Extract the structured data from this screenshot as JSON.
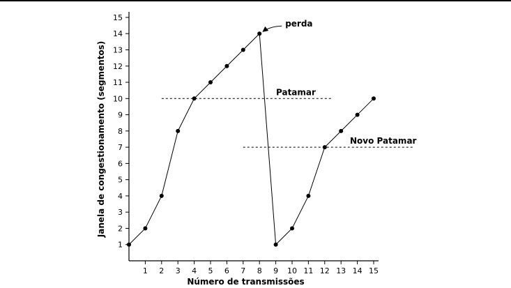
{
  "chart_data": {
    "type": "line",
    "xlabel": "Número de transmissões",
    "ylabel": "Janela de congestionamento (segmentos)",
    "xlim": [
      0,
      15
    ],
    "ylim": [
      0,
      15
    ],
    "x_ticks": [
      1,
      2,
      3,
      4,
      5,
      6,
      7,
      8,
      9,
      10,
      11,
      12,
      13,
      14,
      15
    ],
    "y_ticks": [
      1,
      2,
      3,
      4,
      5,
      6,
      7,
      8,
      9,
      10,
      11,
      12,
      13,
      14,
      15
    ],
    "grid": false,
    "series": [
      {
        "x": [
          0,
          1,
          2,
          3,
          4,
          5,
          6,
          7,
          8,
          9,
          10,
          11,
          12,
          13,
          14,
          15
        ],
        "y": [
          1,
          2,
          4,
          8,
          10,
          11,
          12,
          13,
          14,
          1,
          2,
          4,
          7,
          8,
          9,
          10
        ]
      }
    ],
    "thresholds": [
      {
        "label": "Patamar",
        "y": 10,
        "x_range": [
          2,
          12.5
        ]
      },
      {
        "label": "Novo Patamar",
        "y": 7,
        "x_range": [
          7,
          17.5
        ]
      }
    ],
    "annotations": [
      {
        "text": "perda",
        "x": 8,
        "y": 14
      }
    ]
  }
}
